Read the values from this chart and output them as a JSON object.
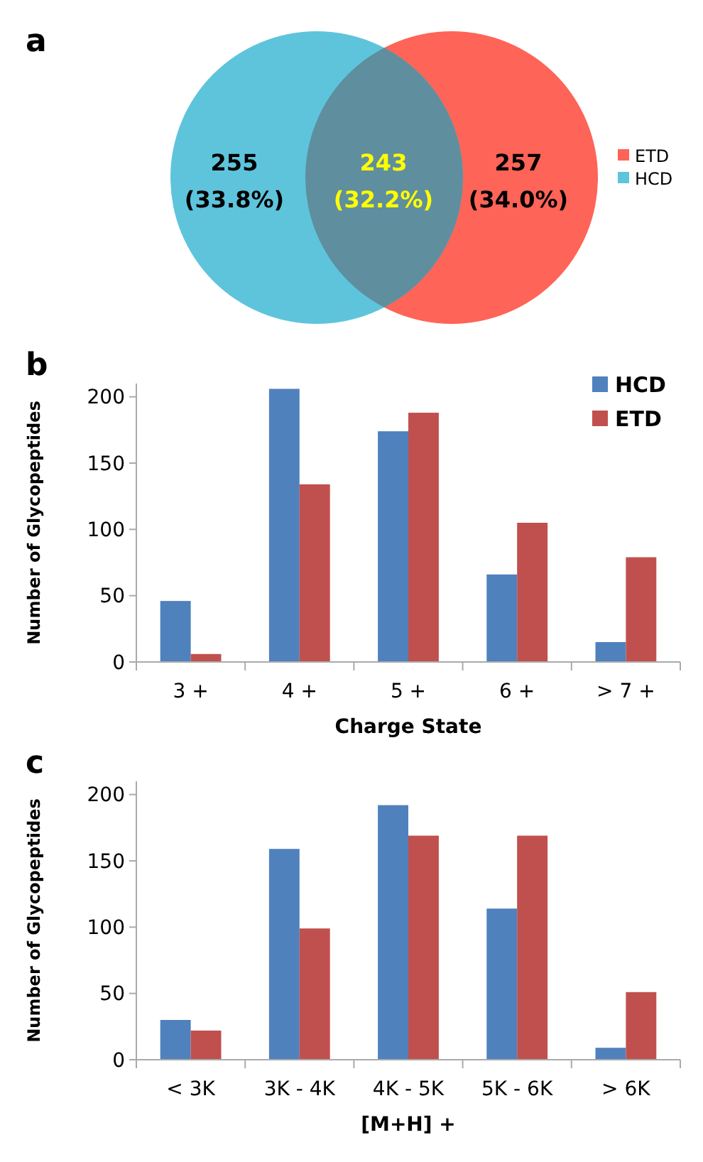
{
  "chart_data": [
    {
      "type": "other",
      "title": "a",
      "legend": "right",
      "annotations": [
        "255\n(33.8%)",
        "243\n(32.2%)",
        "257\n(34.0%)"
      ],
      "series": [
        {
          "name": "ETD",
          "color": "#fe6457"
        },
        {
          "name": "HCD",
          "color": "#5ec4dc"
        }
      ]
    },
    {
      "type": "bar",
      "title": "b",
      "xlabel": "Charge State",
      "ylabel": "Number of Glycopeptides",
      "categories": [
        "3 +",
        "4 +",
        "5 +",
        "6 +",
        "> 7 +"
      ],
      "ylim": [
        0,
        210
      ],
      "yticks": [
        0,
        50,
        100,
        150,
        200
      ],
      "legend": "top right",
      "series": [
        {
          "name": "HCD",
          "color": "#4f81bd",
          "values": [
            46,
            206,
            174,
            66,
            15
          ]
        },
        {
          "name": "ETD",
          "color": "#c0504d",
          "values": [
            6,
            134,
            188,
            105,
            79
          ]
        }
      ]
    },
    {
      "type": "bar",
      "title": "c",
      "xlabel": "[M+H] +",
      "ylabel": "Number of Glycopeptides",
      "categories": [
        "< 3K",
        "3K - 4K",
        "4K - 5K",
        "5K - 6K",
        "> 6K"
      ],
      "ylim": [
        0,
        210
      ],
      "yticks": [
        0,
        50,
        100,
        150,
        200
      ],
      "legend": false,
      "series": [
        {
          "color": "#4f81bd",
          "values": [
            30,
            159,
            192,
            114,
            9
          ]
        },
        {
          "color": "#c0504d",
          "values": [
            22,
            99,
            169,
            169,
            51
          ]
        }
      ]
    }
  ]
}
